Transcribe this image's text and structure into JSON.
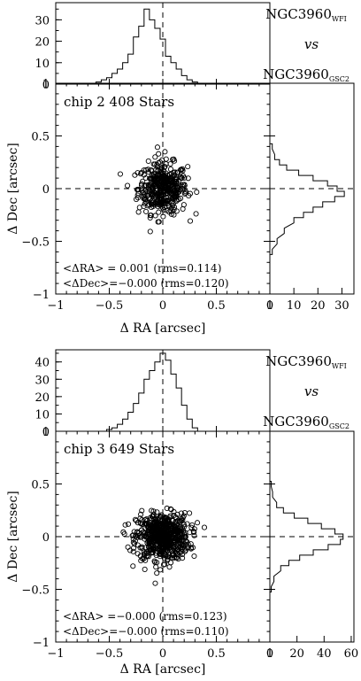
{
  "chart_data": [
    {
      "type": "scatter",
      "panel_label": "chip 2",
      "n_stars": "408 Stars",
      "xlabel": "Δ RA [arcsec]",
      "ylabel": "Δ Dec [arcsec]",
      "xlim": [
        -1,
        1
      ],
      "ylim": [
        -1,
        1
      ],
      "x_ticks": [
        "−1",
        "−0.5",
        "0",
        "0.5"
      ],
      "y_ticks": [
        "−1",
        "−0.5",
        "0",
        "0.5"
      ],
      "stats": [
        "<ΔRA> = 0.001 (rms=0.114)",
        "<ΔDec>=−0.000 (rms=0.120)"
      ],
      "top_hist_ylim": [
        0,
        38
      ],
      "top_hist_ticks": [
        "0",
        "10",
        "20",
        "30"
      ],
      "right_hist_xlim": [
        0,
        35
      ],
      "right_hist_ticks": [
        "0",
        "10",
        "20",
        "30"
      ],
      "label_main": "NGC3960",
      "label_sub1": "WFI",
      "label_vs": "vs",
      "label_sub2": "GSC2",
      "top_hist_x": [
        -0.6,
        -0.55,
        -0.5,
        -0.45,
        -0.4,
        -0.35,
        -0.3,
        -0.25,
        -0.2,
        -0.15,
        -0.1,
        -0.05,
        0,
        0.05,
        0.1,
        0.15,
        0.2,
        0.25,
        0.3,
        0.35
      ],
      "top_hist_counts": [
        1,
        2,
        3,
        5,
        7,
        10,
        14,
        22,
        27,
        35,
        30,
        26,
        21,
        13,
        10,
        7,
        4,
        2,
        1,
        0
      ],
      "right_hist_y": [
        -0.6,
        -0.5,
        -0.4,
        -0.3,
        -0.25,
        -0.2,
        -0.15,
        -0.1,
        -0.05,
        0,
        0.05,
        0.1,
        0.15,
        0.2,
        0.25,
        0.3,
        0.4
      ],
      "right_hist_counts": [
        1,
        3,
        6,
        10,
        14,
        18,
        22,
        27,
        31,
        28,
        24,
        18,
        12,
        7,
        4,
        2,
        1
      ],
      "scatter_points": [
        [
          -0.04,
          0.33
        ],
        [
          0.02,
          0.35
        ]
      ]
    },
    {
      "type": "scatter",
      "panel_label": "chip 3",
      "n_stars": "649 Stars",
      "xlabel": "Δ RA [arcsec]",
      "ylabel": "Δ Dec [arcsec]",
      "xlim": [
        -1,
        1
      ],
      "ylim": [
        -1,
        1
      ],
      "x_ticks": [
        "−1",
        "−0.5",
        "0",
        "0.5"
      ],
      "y_ticks": [
        "−1",
        "−0.5",
        "0",
        "0.5"
      ],
      "stats": [
        "<ΔRA> =−0.000 (rms=0.123)",
        "<ΔDec>=−0.000 (rms=0.110)"
      ],
      "top_hist_ylim": [
        0,
        47
      ],
      "top_hist_ticks": [
        "0",
        "10",
        "20",
        "30",
        "40"
      ],
      "right_hist_xlim": [
        0,
        62
      ],
      "right_hist_ticks": [
        "0",
        "20",
        "40",
        "60"
      ],
      "label_main": "NGC3960",
      "label_sub1": "WFI",
      "label_vs": "vs",
      "label_sub2": "GSC2",
      "top_hist_x": [
        -0.5,
        -0.45,
        -0.4,
        -0.35,
        -0.3,
        -0.25,
        -0.2,
        -0.15,
        -0.1,
        -0.05,
        0,
        0.05,
        0.1,
        0.15,
        0.2,
        0.25,
        0.3
      ],
      "top_hist_counts": [
        1,
        2,
        4,
        7,
        11,
        16,
        22,
        30,
        35,
        40,
        45,
        41,
        33,
        25,
        15,
        7,
        2
      ],
      "right_hist_y": [
        -0.5,
        -0.4,
        -0.3,
        -0.25,
        -0.2,
        -0.15,
        -0.1,
        -0.05,
        0,
        0.05,
        0.1,
        0.15,
        0.2,
        0.25,
        0.3,
        0.4,
        0.5
      ],
      "right_hist_counts": [
        1,
        3,
        8,
        14,
        22,
        32,
        43,
        52,
        54,
        48,
        38,
        28,
        18,
        10,
        5,
        2,
        1
      ],
      "scatter_points": []
    }
  ]
}
